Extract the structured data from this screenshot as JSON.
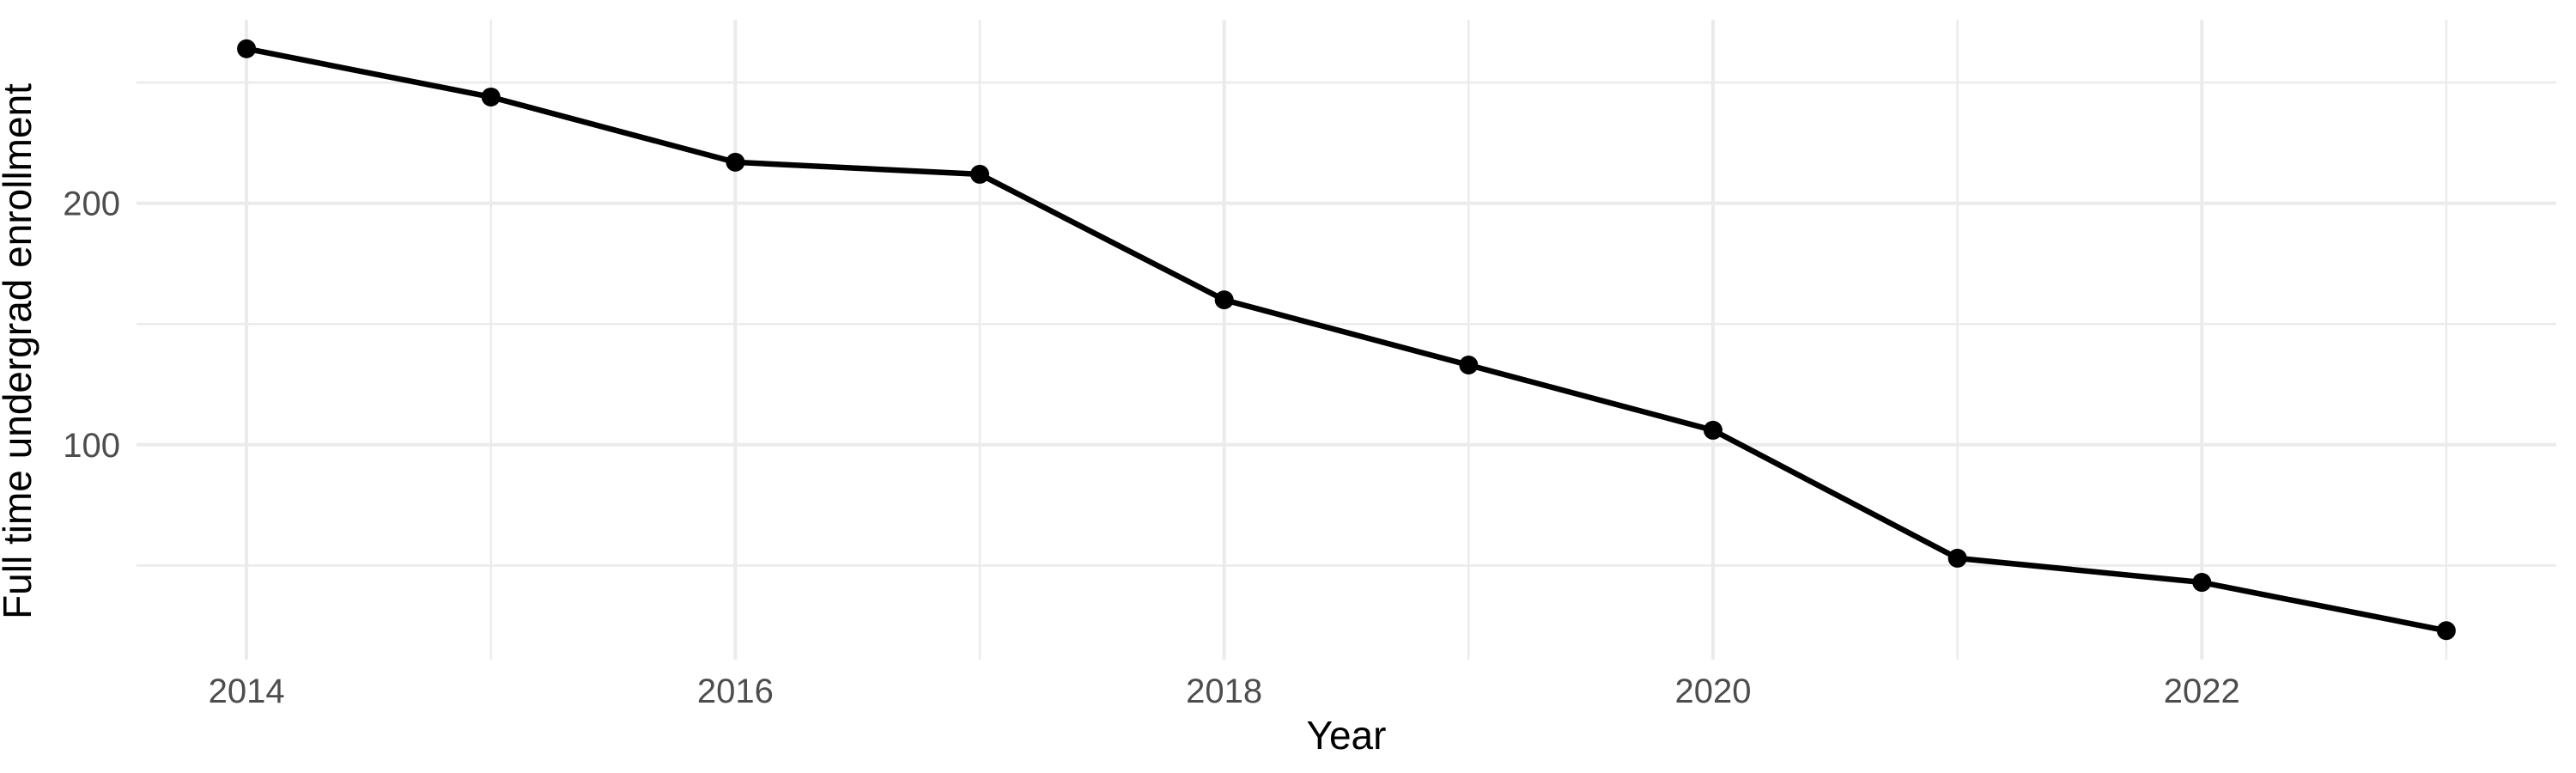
{
  "chart_data": {
    "type": "line",
    "title": "",
    "xlabel": "Year",
    "ylabel": "Full time undergrad enrollment",
    "series": [
      {
        "name": "Full time undergrad enrollment",
        "x": [
          2014,
          2015,
          2016,
          2017,
          2018,
          2019,
          2020,
          2021,
          2022,
          2023
        ],
        "values": [
          264,
          244,
          217,
          212,
          160,
          133,
          106,
          53,
          43,
          23
        ]
      }
    ],
    "xlim": [
      2013.55,
      2023.45
    ],
    "ylim": [
      11,
      276
    ],
    "x_ticks": [
      {
        "value": 2014,
        "label": "2014"
      },
      {
        "value": 2016,
        "label": "2016"
      },
      {
        "value": 2018,
        "label": "2018"
      },
      {
        "value": 2020,
        "label": "2020"
      },
      {
        "value": 2022,
        "label": "2022"
      }
    ],
    "y_ticks": [
      {
        "value": 100,
        "label": "100"
      },
      {
        "value": 200,
        "label": "200"
      }
    ],
    "x_minor_gridlines": [
      2015,
      2017,
      2019,
      2021,
      2023
    ],
    "y_minor_gridlines": [
      50,
      150,
      250
    ],
    "grid": true,
    "legend_position": "none",
    "style": {
      "background": "#ffffff",
      "line_color": "#000000",
      "point_color": "#000000",
      "grid_color": "#ebebeb",
      "tick_label_color": "#4d4d4d",
      "axis_title_color": "#000000"
    }
  }
}
